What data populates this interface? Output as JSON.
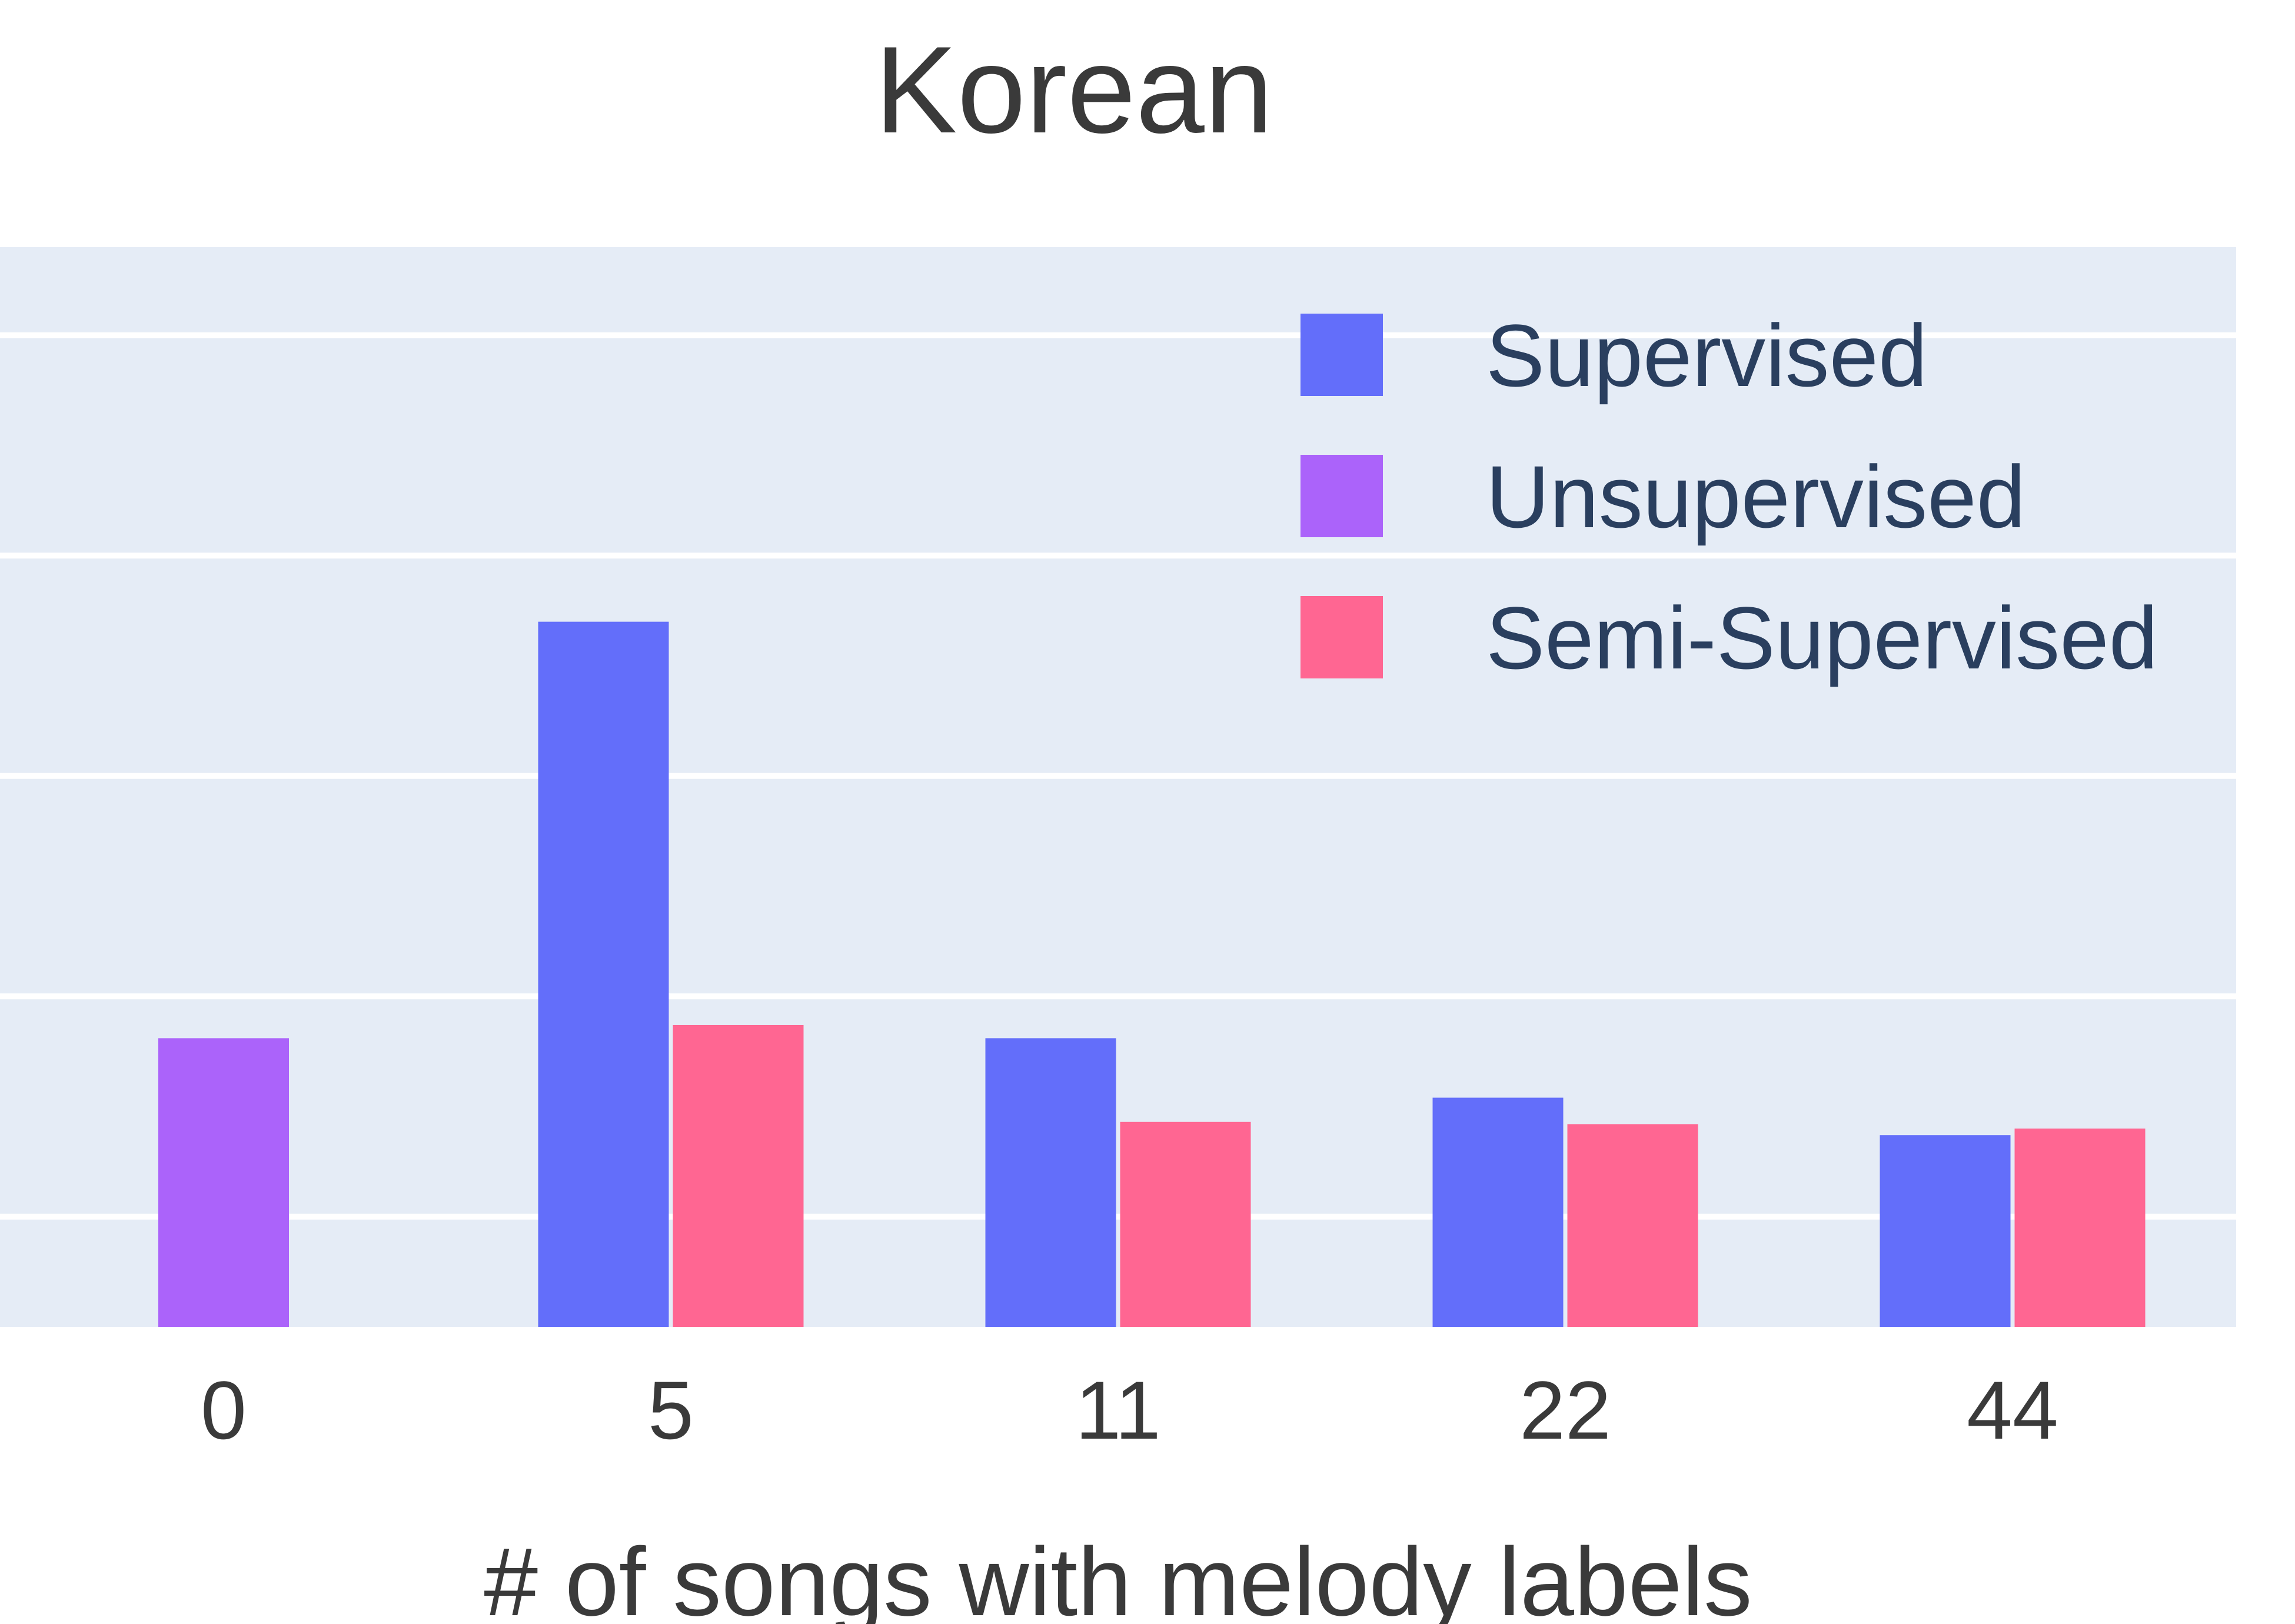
{
  "chart_data": {
    "type": "bar",
    "title": "Korean",
    "xlabel": "# of songs with melody labels",
    "ylabel": "",
    "categories": [
      "0",
      "5",
      "11",
      "22",
      "44"
    ],
    "ylim": [
      0,
      4.9
    ],
    "gridlines": [
      0.5,
      1.5,
      2.5,
      3.5,
      4.5
    ],
    "grid": true,
    "legend_position": "top-right",
    "series": [
      {
        "name": "Supervised",
        "color": "#636efa",
        "values": [
          null,
          3.2,
          1.31,
          1.04,
          0.87
        ]
      },
      {
        "name": "Unsupervised",
        "color": "#ab63fa",
        "values": [
          1.31,
          null,
          null,
          null,
          null
        ]
      },
      {
        "name": "Semi-Supervised",
        "color": "#ff6692",
        "values": [
          null,
          1.37,
          0.93,
          0.92,
          0.9
        ]
      }
    ]
  }
}
